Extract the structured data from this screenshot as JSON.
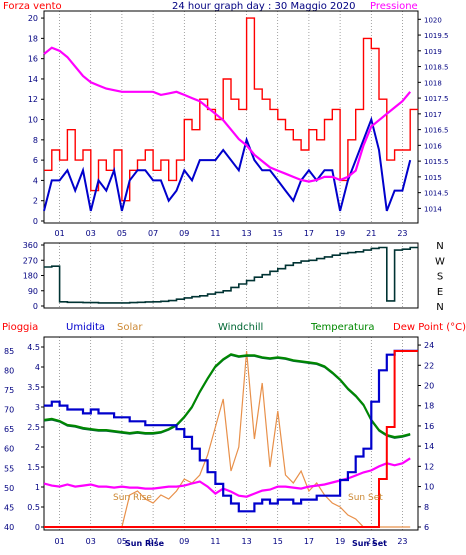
{
  "header": {
    "left": "Forza vento",
    "title": "24 hour graph day : 30 Maggio 2020",
    "right": "Pressione"
  },
  "colors": {
    "wind": "#ff0000",
    "gust": "#0000cc",
    "pressure": "#ff00ff",
    "direction": "#003333",
    "rain": "#ff0000",
    "humidity": "#0000cc",
    "solar": "#e8904a",
    "windchill": "#006633",
    "temperature": "#008800",
    "dewpoint": "#ff00ff",
    "axis": "#000080"
  },
  "chart_data": [
    {
      "type": "line",
      "title": "24 hour graph day : 30 Maggio 2020",
      "ylabel_left": "Forza vento",
      "ylabel_right": "Pressione",
      "x_ticks": [
        "01",
        "03",
        "05",
        "07",
        "09",
        "11",
        "13",
        "15",
        "17",
        "19",
        "21",
        "23"
      ],
      "y_left_ticks": [
        0,
        2,
        4,
        6,
        8,
        10,
        12,
        14,
        16,
        18,
        20
      ],
      "y_right_ticks": [
        1014,
        1014.5,
        1015,
        1015.5,
        1016,
        1016.5,
        1017,
        1017.5,
        1018,
        1018.5,
        1019,
        1019.5,
        1020
      ],
      "ylim_left": [
        0,
        20.5
      ],
      "ylim_right": [
        1013.6,
        1020.2
      ],
      "x_hours": [
        0,
        0.5,
        1,
        1.5,
        2,
        2.5,
        3,
        3.5,
        4,
        4.5,
        5,
        5.5,
        6,
        6.5,
        7,
        7.5,
        8,
        8.5,
        9,
        9.5,
        10,
        10.5,
        11,
        11.5,
        12,
        12.5,
        13,
        13.5,
        14,
        14.5,
        15,
        15.5,
        16,
        16.5,
        17,
        17.5,
        18,
        18.5,
        19,
        19.5,
        20,
        20.5,
        21,
        21.5,
        22,
        22.5,
        23,
        23.5
      ],
      "series": [
        {
          "name": "Forza vento",
          "axis": "left",
          "values": [
            5,
            7,
            6,
            9,
            6,
            7,
            3,
            6,
            5,
            7,
            2,
            5,
            6,
            7,
            5,
            6,
            4,
            6,
            10,
            9,
            12,
            11,
            10,
            14,
            12,
            11,
            20,
            13,
            12,
            11,
            10,
            9,
            8,
            7,
            9,
            8,
            10,
            11,
            4,
            8,
            11,
            18,
            17,
            12,
            6,
            7,
            7,
            11
          ]
        },
        {
          "name": "",
          "axis": "left",
          "values": [
            1,
            4,
            4,
            5,
            3,
            5,
            1,
            4,
            3,
            5,
            1,
            4,
            5,
            5,
            4,
            4,
            2,
            3,
            5,
            4,
            6,
            6,
            6,
            7,
            6,
            5,
            8,
            6,
            5,
            5,
            4,
            3,
            2,
            4,
            5,
            4,
            5,
            5,
            1,
            4,
            6,
            8,
            10,
            7,
            1,
            3,
            3,
            6
          ]
        },
        {
          "name": "Pressione",
          "axis": "right",
          "values": [
            1018.9,
            1019.1,
            1019,
            1018.8,
            1018.5,
            1018.2,
            1018,
            1017.9,
            1017.8,
            1017.75,
            1017.7,
            1017.7,
            1017.7,
            1017.7,
            1017.7,
            1017.6,
            1017.65,
            1017.7,
            1017.6,
            1017.5,
            1017.4,
            1017.2,
            1017,
            1016.8,
            1016.5,
            1016.2,
            1016,
            1015.7,
            1015.5,
            1015.3,
            1015.2,
            1015.1,
            1015,
            1014.9,
            1014.85,
            1014.9,
            1015,
            1015,
            1014.9,
            1015,
            1015.2,
            1016,
            1016.6,
            1016.8,
            1017,
            1017.2,
            1017.4,
            1017.7
          ]
        }
      ]
    },
    {
      "type": "line",
      "title": "",
      "y_left_ticks": [
        0,
        90,
        180,
        270,
        360
      ],
      "y_right_labels": [
        "N",
        "W",
        "S",
        "E",
        "N"
      ],
      "ylim": [
        0,
        360
      ],
      "x_hours": [
        0,
        0.5,
        1,
        1.5,
        2,
        2.5,
        3,
        3.5,
        4,
        4.5,
        5,
        5.5,
        6,
        6.5,
        7,
        7.5,
        8,
        8.5,
        9,
        9.5,
        10,
        10.5,
        11,
        11.5,
        12,
        12.5,
        13,
        13.5,
        14,
        14.5,
        15,
        15.5,
        16,
        16.5,
        17,
        17.5,
        18,
        18.5,
        19,
        19.5,
        20,
        20.5,
        21,
        21.5,
        22,
        22.5,
        23,
        23.5
      ],
      "series": [
        {
          "name": "",
          "values": [
            230,
            235,
            25,
            22,
            22,
            20,
            20,
            18,
            18,
            18,
            18,
            20,
            22,
            24,
            25,
            28,
            32,
            40,
            48,
            55,
            60,
            70,
            80,
            90,
            110,
            130,
            150,
            170,
            185,
            205,
            220,
            240,
            255,
            265,
            270,
            280,
            290,
            300,
            310,
            315,
            320,
            330,
            340,
            345,
            30,
            330,
            335,
            345
          ]
        }
      ]
    },
    {
      "type": "line",
      "title": "",
      "legend": [
        "Pioggia",
        "Umidita",
        "Solar",
        "Windchill",
        "Temperatura",
        "Dew Point (°C)"
      ],
      "x_ticks": [
        "01",
        "03",
        "05",
        "07",
        "09",
        "11",
        "13",
        "15",
        "17",
        "19",
        "21",
        "23"
      ],
      "y_rain_ticks": [
        0,
        0.5,
        1,
        1.5,
        2,
        2.5,
        3,
        3.5,
        4,
        4.5
      ],
      "y_hum_ticks": [
        40,
        45,
        50,
        55,
        60,
        65,
        70,
        75,
        80,
        85
      ],
      "y_temp_ticks": [
        6,
        8,
        10,
        12,
        14,
        16,
        18,
        20,
        22,
        24
      ],
      "ylim_rain": [
        0,
        4.7
      ],
      "ylim_hum": [
        40,
        88
      ],
      "ylim_temp": [
        6,
        24.6
      ],
      "annotations": [
        "Sun Rise",
        "Sun Set",
        "Sun Rise",
        "Sun Set"
      ],
      "x_hours": [
        0,
        0.5,
        1,
        1.5,
        2,
        2.5,
        3,
        3.5,
        4,
        4.5,
        5,
        5.5,
        6,
        6.5,
        7,
        7.5,
        8,
        8.5,
        9,
        9.5,
        10,
        10.5,
        11,
        11.5,
        12,
        12.5,
        13,
        13.5,
        14,
        14.5,
        15,
        15.5,
        16,
        16.5,
        17,
        17.5,
        18,
        18.5,
        19,
        19.5,
        20,
        20.5,
        21,
        21.5,
        22,
        22.5,
        23,
        23.5
      ],
      "series": [
        {
          "name": "Pioggia",
          "axis": "rain",
          "values": [
            0,
            0,
            0,
            0,
            0,
            0,
            0,
            0,
            0,
            0,
            0,
            0,
            0,
            0,
            0,
            0,
            0,
            0,
            0,
            0,
            0,
            0,
            0,
            0,
            0,
            0,
            0,
            0,
            0,
            0,
            0,
            0,
            0,
            0,
            0,
            0,
            0,
            0,
            0,
            0,
            0,
            0,
            0,
            1.2,
            2.5,
            4.4,
            4.4,
            4.4
          ]
        },
        {
          "name": "Umidita",
          "axis": "hum",
          "values": [
            71,
            72,
            71,
            70,
            70,
            69,
            70,
            69,
            69,
            68,
            68,
            67,
            67,
            66,
            66,
            66,
            66,
            65,
            63,
            60,
            57,
            54,
            51,
            48,
            46,
            44,
            44,
            46,
            47,
            46,
            47,
            47,
            46,
            47,
            47,
            48,
            48,
            48,
            52,
            54,
            58,
            60,
            72,
            80,
            84,
            85,
            85,
            85
          ]
        },
        {
          "name": "Solar",
          "axis": "rain",
          "values": [
            0,
            0,
            0,
            0,
            0,
            0,
            0,
            0,
            0,
            0,
            0,
            0.8,
            0.9,
            0.7,
            0.6,
            0.8,
            0.7,
            0.9,
            1.2,
            1.1,
            1.3,
            1.8,
            2.5,
            3.2,
            1.4,
            2,
            4.4,
            2.2,
            3.6,
            1.5,
            2.9,
            1.3,
            1.1,
            1.4,
            0.9,
            1.1,
            0.8,
            0.6,
            0.5,
            0.3,
            0.2,
            0,
            0,
            0,
            0,
            0,
            0,
            0
          ]
        },
        {
          "name": "Windchill",
          "axis": "temp",
          "values": [
            16.5,
            16.6,
            16.4,
            16,
            15.9,
            15.7,
            15.6,
            15.5,
            15.5,
            15.4,
            15.3,
            15.2,
            15.3,
            15.2,
            15.2,
            15.3,
            15.6,
            16,
            16.8,
            17.8,
            19.3,
            20.6,
            21.8,
            22.5,
            23,
            22.8,
            22.9,
            22.9,
            22.7,
            22.6,
            22.7,
            22.6,
            22.4,
            22.3,
            22.2,
            22.1,
            21.8,
            21.2,
            20.5,
            19.6,
            18.9,
            18,
            16.5,
            15.5,
            15,
            14.8,
            14.9,
            15.1
          ]
        },
        {
          "name": "Temperatura",
          "axis": "temp",
          "values": [
            16.6,
            16.7,
            16.5,
            16.1,
            16,
            15.8,
            15.7,
            15.6,
            15.6,
            15.5,
            15.4,
            15.3,
            15.4,
            15.3,
            15.3,
            15.4,
            15.7,
            16.1,
            16.9,
            17.9,
            19.4,
            20.7,
            21.9,
            22.6,
            23.1,
            22.9,
            23,
            23,
            22.8,
            22.7,
            22.8,
            22.7,
            22.5,
            22.4,
            22.3,
            22.2,
            21.9,
            21.3,
            20.6,
            19.7,
            19,
            18.1,
            16.6,
            15.6,
            15.1,
            14.9,
            15,
            15.2
          ]
        },
        {
          "name": "Dew Point (°C)",
          "axis": "temp",
          "values": [
            10.3,
            10.1,
            10,
            10.2,
            10,
            10.1,
            10.2,
            10,
            10,
            9.9,
            10,
            9.9,
            9.9,
            9.8,
            9.8,
            9.9,
            10,
            10,
            10.1,
            10.3,
            10.5,
            10,
            9.3,
            9.8,
            9.5,
            9.1,
            9,
            9.3,
            9.6,
            9.7,
            10,
            10,
            9.9,
            9.8,
            10,
            10.1,
            10.2,
            10.4,
            10.6,
            10.8,
            11.1,
            11.4,
            11.6,
            12,
            12.3,
            12.1,
            12.3,
            12.8
          ]
        }
      ]
    }
  ]
}
